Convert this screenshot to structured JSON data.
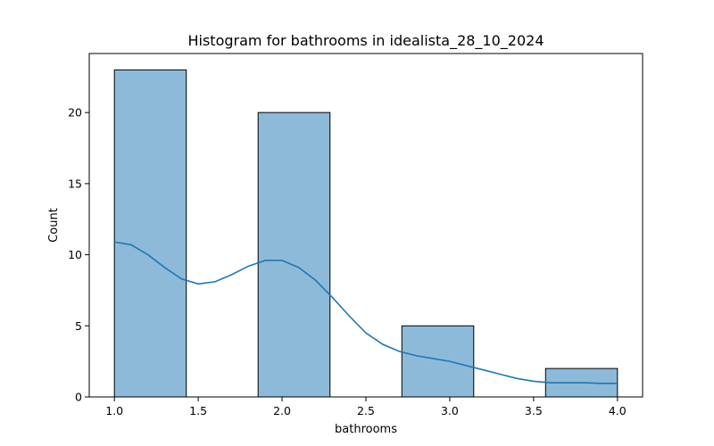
{
  "chart_data": {
    "type": "bar",
    "title": "Histogram for bathrooms in idealista_28_10_2024",
    "xlabel": "bathrooms",
    "ylabel": "Count",
    "xlim": [
      0.85,
      4.15
    ],
    "ylim": [
      0,
      24.15
    ],
    "x_ticks": [
      "1.0",
      "1.5",
      "2.0",
      "2.5",
      "3.0",
      "3.5",
      "4.0"
    ],
    "y_ticks": [
      "0",
      "5",
      "10",
      "15",
      "20"
    ],
    "bins": [
      {
        "start": 1.0,
        "end": 1.4286,
        "count": 23
      },
      {
        "start": 1.4286,
        "end": 1.8571,
        "count": 0
      },
      {
        "start": 1.8571,
        "end": 2.2857,
        "count": 20
      },
      {
        "start": 2.2857,
        "end": 2.7143,
        "count": 0
      },
      {
        "start": 2.7143,
        "end": 3.1429,
        "count": 5
      },
      {
        "start": 3.1429,
        "end": 3.5714,
        "count": 0
      },
      {
        "start": 3.5714,
        "end": 4.0,
        "count": 2
      }
    ],
    "kde": {
      "x": [
        1.0,
        1.1,
        1.2,
        1.3,
        1.4,
        1.5,
        1.6,
        1.7,
        1.8,
        1.9,
        2.0,
        2.1,
        2.2,
        2.3,
        2.4,
        2.5,
        2.6,
        2.7,
        2.8,
        2.9,
        3.0,
        3.1,
        3.2,
        3.3,
        3.4,
        3.5,
        3.6,
        3.7,
        3.8,
        3.9,
        4.0
      ],
      "y": [
        10.9,
        10.7,
        10.0,
        9.1,
        8.3,
        7.95,
        8.1,
        8.6,
        9.2,
        9.6,
        9.6,
        9.1,
        8.2,
        7.0,
        5.7,
        4.5,
        3.7,
        3.2,
        2.9,
        2.7,
        2.5,
        2.2,
        1.9,
        1.6,
        1.3,
        1.1,
        1.0,
        1.0,
        1.0,
        0.95,
        0.95
      ]
    },
    "colors": {
      "bar_fill": "#8ebad9",
      "bar_edge": "#000000",
      "kde_line": "#1f77b4"
    },
    "grid": false,
    "legend": false
  }
}
